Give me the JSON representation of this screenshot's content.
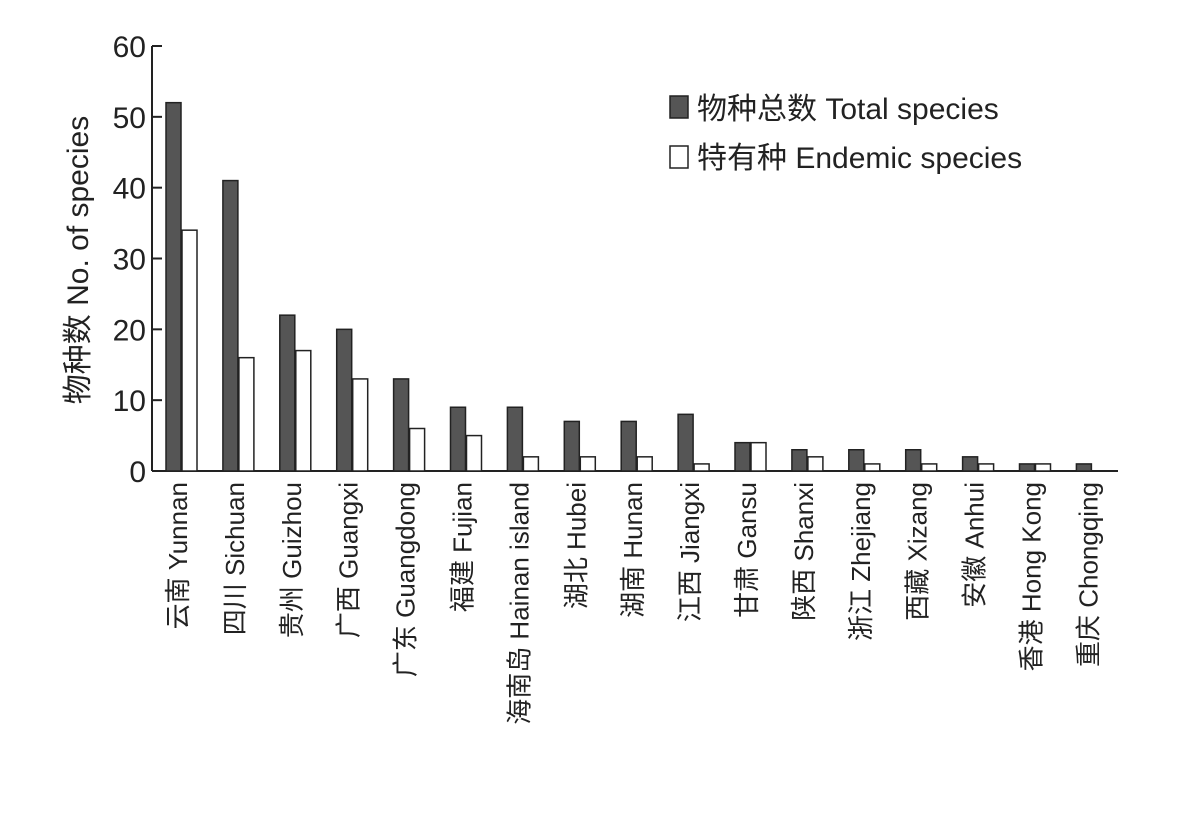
{
  "chart_data": {
    "type": "bar",
    "title": "",
    "xlabel": "",
    "ylabel": "物种数  No. of species",
    "ylim": [
      0,
      60
    ],
    "yticks": [
      0,
      10,
      20,
      30,
      40,
      50,
      60
    ],
    "grid": false,
    "legend_position": "top-right",
    "categories": [
      "云南 Yunnan",
      "四川 Sichuan",
      "贵州 Guizhou",
      "广西 Guangxi",
      "广东 Guangdong",
      "福建 Fujian",
      "海南岛 Hainan island",
      "湖北 Hubei",
      "湖南 Hunan",
      "江西 Jiangxi",
      "甘肃 Gansu",
      "陕西 Shanxi",
      "浙江 Zhejiang",
      "西藏 Xizang",
      "安徽 Anhui",
      "香港 Hong Kong",
      "重庆 Chongqing"
    ],
    "series": [
      {
        "name": "物种总数  Total species",
        "color": "#555555",
        "values": [
          52,
          41,
          22,
          20,
          13,
          9,
          9,
          7,
          7,
          8,
          4,
          3,
          3,
          3,
          2,
          1,
          1
        ]
      },
      {
        "name": "特有种  Endemic species",
        "color": "#ffffff",
        "values": [
          34,
          16,
          17,
          13,
          6,
          5,
          2,
          2,
          2,
          1,
          4,
          2,
          1,
          1,
          1,
          1,
          0
        ]
      }
    ]
  },
  "labels_cn": [
    "云南",
    "四川",
    "贵州",
    "广西",
    "广东",
    "福建",
    "海南岛",
    "湖北",
    "湖南",
    "江西",
    "甘肃",
    "陕西",
    "浙江",
    "西藏",
    "安徽",
    "香港",
    "重庆"
  ],
  "labels_en": [
    "Yunnan",
    "Sichuan",
    "Guizhou",
    "Guangxi",
    "Guangdong",
    "Fujian",
    "Hainan island",
    "Hubei",
    "Hunan",
    "Jiangxi",
    "Gansu",
    "Shanxi",
    "Zhejiang",
    "Xizang",
    "Anhui",
    "Hong Kong",
    "Chongqing"
  ]
}
